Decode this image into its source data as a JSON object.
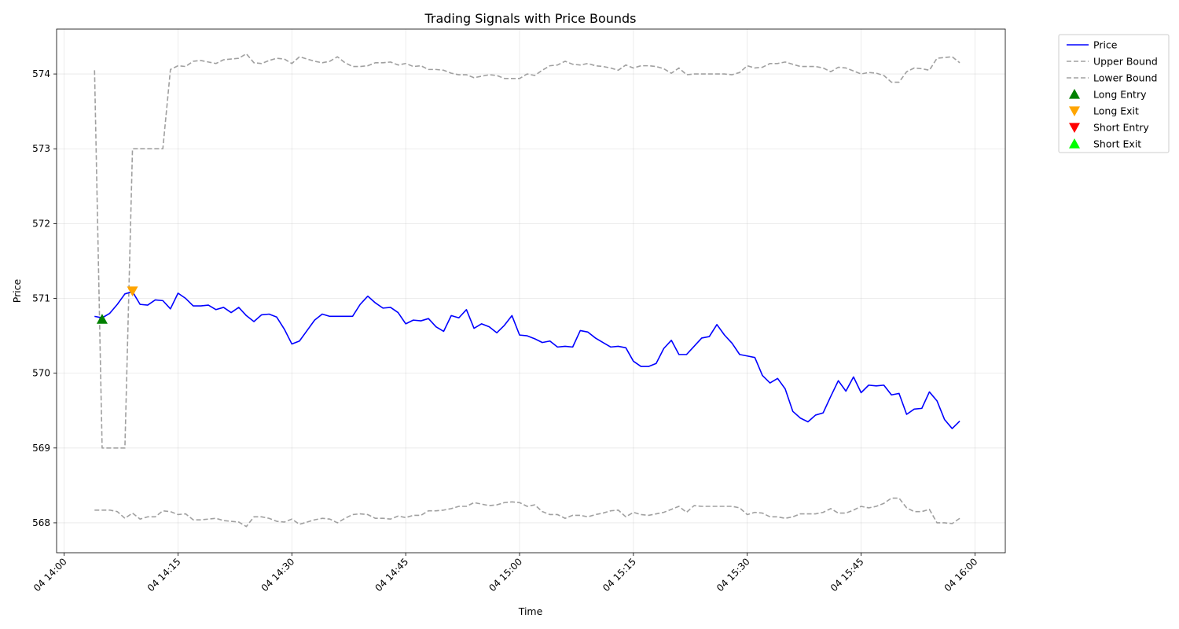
{
  "chart_data": {
    "type": "line",
    "title": "Trading Signals with Price Bounds",
    "xlabel": "Time",
    "ylabel": "Price",
    "x_start": "14:04",
    "x_step_minutes": 1,
    "xlim": [
      "13:59",
      "16:04"
    ],
    "ylim": [
      567.6,
      574.6
    ],
    "x_ticks": [
      {
        "time": "14:00",
        "label": "04 14:00"
      },
      {
        "time": "14:15",
        "label": "04 14:15"
      },
      {
        "time": "14:30",
        "label": "04 14:30"
      },
      {
        "time": "14:45",
        "label": "04 14:45"
      },
      {
        "time": "15:00",
        "label": "04 15:00"
      },
      {
        "time": "15:15",
        "label": "04 15:15"
      },
      {
        "time": "15:30",
        "label": "04 15:30"
      },
      {
        "time": "15:45",
        "label": "04 15:45"
      },
      {
        "time": "16:00",
        "label": "04 16:00"
      }
    ],
    "y_ticks": [
      568,
      569,
      570,
      571,
      572,
      573,
      574
    ],
    "grid": true,
    "legend_position": "outside-top-right",
    "series": [
      {
        "name": "Price",
        "style": "solid",
        "color": "#0000ff",
        "values": [
          570.76,
          570.74,
          570.8,
          570.92,
          571.06,
          571.09,
          570.92,
          570.91,
          570.98,
          570.97,
          570.86,
          571.07,
          571.0,
          570.9,
          570.9,
          570.91,
          570.85,
          570.88,
          570.81,
          570.88,
          570.77,
          570.69,
          570.78,
          570.79,
          570.75,
          570.59,
          570.39,
          570.43,
          570.57,
          570.71,
          570.79,
          570.76,
          570.76,
          570.76,
          570.76,
          570.92,
          571.03,
          570.94,
          570.87,
          570.88,
          570.81,
          570.66,
          570.71,
          570.7,
          570.73,
          570.62,
          570.56,
          570.77,
          570.74,
          570.85,
          570.6,
          570.66,
          570.62,
          570.54,
          570.64,
          570.77,
          570.51,
          570.5,
          570.46,
          570.41,
          570.43,
          570.35,
          570.36,
          570.35,
          570.57,
          570.55,
          570.47,
          570.41,
          570.35,
          570.36,
          570.34,
          570.16,
          570.09,
          570.09,
          570.13,
          570.33,
          570.44,
          570.25,
          570.25,
          570.36,
          570.47,
          570.49,
          570.65,
          570.51,
          570.4,
          570.25,
          570.23,
          570.21,
          569.97,
          569.87,
          569.93,
          569.79,
          569.49,
          569.4,
          569.35,
          569.44,
          569.47,
          569.69,
          569.9,
          569.76,
          569.95,
          569.74,
          569.84,
          569.83,
          569.84,
          569.71,
          569.73,
          569.45,
          569.52,
          569.53,
          569.75,
          569.63,
          569.38,
          569.26,
          569.36
        ]
      },
      {
        "name": "Upper Bound",
        "style": "dashed",
        "color": "#a0a0a0",
        "values": [
          574.05,
          569.0,
          569.0,
          569.0,
          569.0,
          573.0,
          573.0,
          573.0,
          573.0,
          573.0,
          574.06,
          574.11,
          574.1,
          574.17,
          574.18,
          574.16,
          574.14,
          574.19,
          574.2,
          574.21,
          574.27,
          574.15,
          574.14,
          574.18,
          574.21,
          574.2,
          574.14,
          574.23,
          574.2,
          574.17,
          574.15,
          574.17,
          574.23,
          574.15,
          574.1,
          574.1,
          574.11,
          574.15,
          574.15,
          574.16,
          574.12,
          574.14,
          574.1,
          574.11,
          574.06,
          574.06,
          574.05,
          574.01,
          573.99,
          573.99,
          573.95,
          573.97,
          573.99,
          573.98,
          573.94,
          573.94,
          573.94,
          574.0,
          573.98,
          574.05,
          574.11,
          574.12,
          574.17,
          574.13,
          574.12,
          574.14,
          574.11,
          574.1,
          574.08,
          574.05,
          574.12,
          574.08,
          574.11,
          574.11,
          574.1,
          574.07,
          574.01,
          574.08,
          573.99,
          574.0,
          574.0,
          574.0,
          574.0,
          574.0,
          573.99,
          574.02,
          574.11,
          574.08,
          574.09,
          574.14,
          574.14,
          574.16,
          574.13,
          574.1,
          574.1,
          574.1,
          574.08,
          574.03,
          574.09,
          574.08,
          574.04,
          574.0,
          574.02,
          574.01,
          573.98,
          573.89,
          573.89,
          574.03,
          574.08,
          574.07,
          574.05,
          574.21,
          574.22,
          574.23,
          574.15
        ]
      },
      {
        "name": "Lower Bound",
        "style": "dashed",
        "color": "#a0a0a0",
        "values": [
          568.17,
          568.17,
          568.17,
          568.15,
          568.06,
          568.13,
          568.05,
          568.08,
          568.08,
          568.16,
          568.15,
          568.11,
          568.12,
          568.04,
          568.04,
          568.05,
          568.06,
          568.03,
          568.02,
          568.01,
          567.95,
          568.08,
          568.08,
          568.06,
          568.02,
          568.01,
          568.05,
          567.98,
          568.01,
          568.04,
          568.06,
          568.05,
          568.0,
          568.06,
          568.11,
          568.12,
          568.11,
          568.06,
          568.06,
          568.05,
          568.09,
          568.07,
          568.1,
          568.1,
          568.16,
          568.16,
          568.17,
          568.19,
          568.22,
          568.22,
          568.27,
          568.25,
          568.23,
          568.24,
          568.27,
          568.28,
          568.27,
          568.22,
          568.24,
          568.15,
          568.11,
          568.11,
          568.06,
          568.1,
          568.1,
          568.08,
          568.11,
          568.13,
          568.16,
          568.17,
          568.08,
          568.14,
          568.11,
          568.1,
          568.12,
          568.14,
          568.18,
          568.22,
          568.14,
          568.23,
          568.22,
          568.22,
          568.22,
          568.22,
          568.22,
          568.2,
          568.11,
          568.14,
          568.13,
          568.08,
          568.08,
          568.06,
          568.08,
          568.12,
          568.12,
          568.12,
          568.14,
          568.19,
          568.13,
          568.13,
          568.17,
          568.22,
          568.2,
          568.22,
          568.26,
          568.33,
          568.33,
          568.2,
          568.15,
          568.15,
          568.18,
          568.0,
          568.0,
          567.99,
          568.06
        ]
      }
    ],
    "markers": [
      {
        "name": "Long Entry",
        "shape": "triangle-up",
        "color": "#008000",
        "points": [
          {
            "time": "14:05",
            "value": 570.72
          }
        ]
      },
      {
        "name": "Long Exit",
        "shape": "triangle-down",
        "color": "#ffa500",
        "points": [
          {
            "time": "14:09",
            "value": 571.1
          }
        ]
      },
      {
        "name": "Short Entry",
        "shape": "triangle-down",
        "color": "#ff0000",
        "points": []
      },
      {
        "name": "Short Exit",
        "shape": "triangle-up",
        "color": "#00ff00",
        "points": []
      }
    ]
  }
}
